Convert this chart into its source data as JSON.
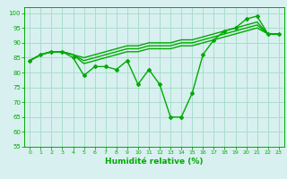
{
  "x": [
    0,
    1,
    2,
    3,
    4,
    5,
    6,
    7,
    8,
    9,
    10,
    11,
    12,
    13,
    14,
    15,
    16,
    17,
    18,
    19,
    20,
    21,
    22,
    23
  ],
  "line_main": [
    84,
    86,
    87,
    87,
    85,
    79,
    82,
    82,
    81,
    84,
    76,
    81,
    76,
    65,
    65,
    73,
    86,
    91,
    94,
    95,
    98,
    99,
    93,
    93
  ],
  "line_top1": [
    84,
    86,
    87,
    87,
    86,
    83,
    84,
    85,
    86,
    87,
    87,
    88,
    88,
    88,
    89,
    89,
    90,
    91,
    92,
    93,
    94,
    95,
    93,
    93
  ],
  "line_top2": [
    84,
    86,
    87,
    87,
    86,
    84,
    85,
    86,
    87,
    88,
    88,
    89,
    89,
    89,
    90,
    90,
    91,
    92,
    93,
    94,
    95,
    96,
    93,
    93
  ],
  "line_top3": [
    84,
    86,
    87,
    87,
    86,
    85,
    86,
    87,
    88,
    89,
    89,
    90,
    90,
    90,
    91,
    91,
    92,
    93,
    94,
    95,
    96,
    97,
    93,
    93
  ],
  "xlim": [
    -0.5,
    23.5
  ],
  "ylim": [
    55,
    102
  ],
  "yticks": [
    55,
    60,
    65,
    70,
    75,
    80,
    85,
    90,
    95,
    100
  ],
  "xticks": [
    0,
    1,
    2,
    3,
    4,
    5,
    6,
    7,
    8,
    9,
    10,
    11,
    12,
    13,
    14,
    15,
    16,
    17,
    18,
    19,
    20,
    21,
    22,
    23
  ],
  "xlabel": "Humidité relative (%)",
  "line_color": "#00aa00",
  "bg_color": "#d8f0f0",
  "grid_color": "#aaddcc",
  "marker": "D",
  "marker_size": 2,
  "linewidth": 1.0
}
